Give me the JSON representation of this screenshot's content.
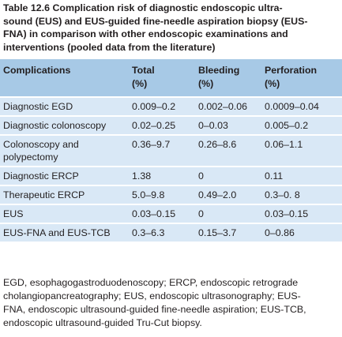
{
  "title": [
    "Table 12.6  Complication risk of diagnostic endoscopic ultra-",
    "sound (EUS) and EUS-guided fine-needle aspiration biopsy (EUS-",
    "FNA) in comparison with other endoscopic examinations and",
    "interventions (pooled data from the literature)"
  ],
  "table": {
    "header": [
      [
        "Complications"
      ],
      [
        "Total",
        "(%)"
      ],
      [
        "Bleeding",
        "(%)"
      ],
      [
        "Perforation",
        "(%)"
      ]
    ],
    "rows": [
      [
        "Diagnostic EGD",
        "0.009–0.2",
        "0.002–0.06",
        "0.0009–0.04"
      ],
      [
        "Diagnostic colonoscopy",
        "0.02–0.25",
        "0–0.03",
        "0.005–0.2"
      ],
      [
        "Colonoscopy and polypectomy",
        "0.36–9.7",
        "0.26–8.6",
        "0.06–1.1"
      ],
      [
        "Diagnostic ERCP",
        "1.38",
        "0",
        "0.11"
      ],
      [
        "Therapeutic ERCP",
        "5.0–9.8",
        "0.49–2.0",
        "0.3–0. 8"
      ],
      [
        "EUS",
        "0.03–0.15",
        "0",
        "0.03–0.15"
      ],
      [
        "EUS-FNA and EUS-TCB",
        "0.3–6.3",
        "0.15–3.7",
        "0–0.86"
      ]
    ]
  },
  "footnote": [
    "EGD, esophagogastroduodenoscopy; ERCP, endoscopic retrograde",
    "cholangiopancreatography; EUS, endoscopic ultrasonography; EUS-",
    "FNA, endoscopic ultrasound-guided fine-needle aspiration; EUS-TCB,",
    "endoscopic ultrasound-guided Tru-Cut biopsy."
  ]
}
